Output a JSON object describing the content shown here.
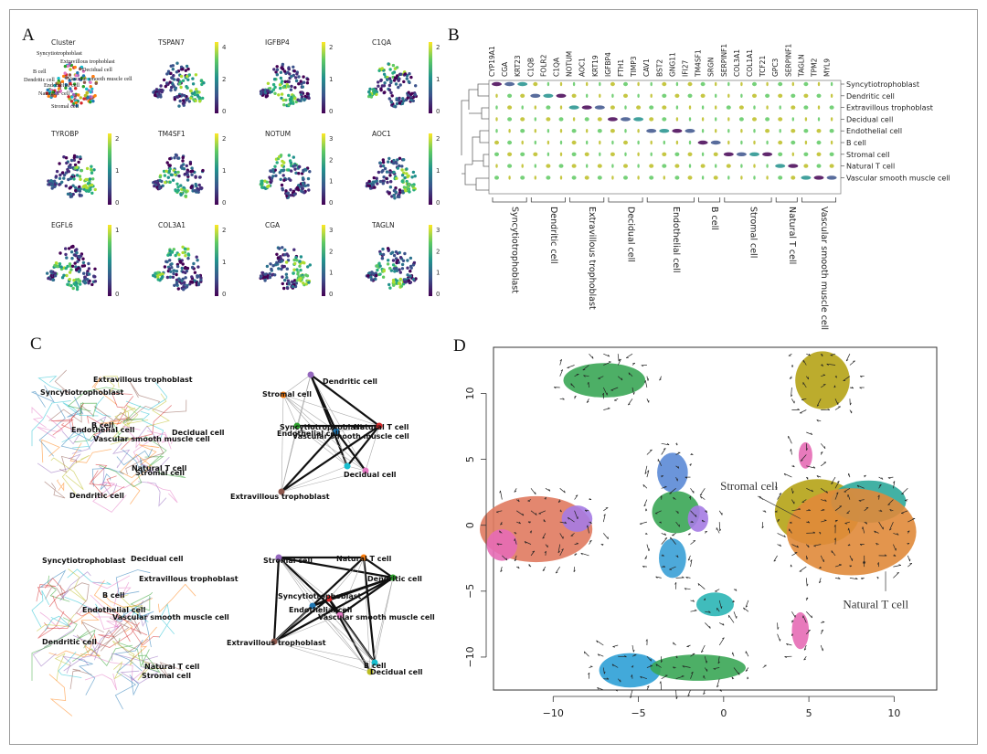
{
  "panels": {
    "a": "A",
    "b": "B",
    "c": "C",
    "d": "D"
  },
  "panel_a": {
    "tiles": [
      {
        "title": "Cluster",
        "scale": []
      },
      {
        "title": "TSPAN7",
        "scale": [
          "4",
          "2",
          "0"
        ]
      },
      {
        "title": "IGFBP4",
        "scale": [
          "2",
          "1",
          "0"
        ]
      },
      {
        "title": "C1QA",
        "scale": [
          "2",
          "1",
          "0"
        ]
      },
      {
        "title": "TYROBP",
        "scale": [
          "2",
          "1",
          "0"
        ]
      },
      {
        "title": "TM4SF1",
        "scale": [
          "2",
          "1",
          "0"
        ]
      },
      {
        "title": "NOTUM",
        "scale": [
          "3",
          "2",
          "1",
          "0"
        ]
      },
      {
        "title": "AOC1",
        "scale": [
          "2",
          "1",
          "0"
        ]
      },
      {
        "title": "EGFL6",
        "scale": [
          "1",
          "0"
        ]
      },
      {
        "title": "COL3A1",
        "scale": [
          "2",
          "1",
          "0"
        ]
      },
      {
        "title": "CGA",
        "scale": [
          "3",
          "2",
          "1",
          "0"
        ]
      },
      {
        "title": "TAGLN",
        "scale": [
          "3",
          "2",
          "1",
          "0"
        ]
      }
    ],
    "cluster_labels": [
      "Syncytiotrophoblast",
      "Extravillous trophoblast",
      "Decidual cell",
      "B cell",
      "Dendritic cell",
      "Vascular smooth muscle cell",
      "Endothelial cell",
      "Natural T cell",
      "Stromal cell"
    ]
  },
  "panel_b": {
    "genes": [
      "CYP19A1",
      "CGA",
      "KRT23",
      "C1QB",
      "FOLR2",
      "C1QA",
      "NOTUM",
      "AOC1",
      "KRT19",
      "IGFBP4",
      "FTH1",
      "TIMP3",
      "CAV1",
      "BST2",
      "GNG11",
      "IFI27",
      "TM4SF1",
      "SRGN",
      "SERPINF1",
      "COL3A1",
      "COL1A1",
      "TCF21",
      "GPC3",
      "SERPINF1",
      "TAGLN",
      "TPM2",
      "MYL9"
    ],
    "rows": [
      "Syncytiotrophoblast",
      "Dendritic cell",
      "Extravillous trophoblast",
      "Decidual cell",
      "Endothelial cell",
      "B cell",
      "Stromal cell",
      "Natural T cell",
      "Vascular smooth muscle cell"
    ],
    "groups": [
      "Syncytiotrophoblast",
      "Dendritic cell",
      "Extravillous trophoblast",
      "Decidual cell",
      "Endothelial cell",
      "B cell",
      "Stromal cell",
      "Natural T cell",
      "Vascular smooth muscle cell"
    ]
  },
  "panel_c": {
    "top_left": [
      "Extravillous trophoblast",
      "Syncytiotrophoblast",
      "B cell",
      "Endothelial cell",
      "Decidual cell",
      "Vascular smooth muscle cell",
      "Natural T cell",
      "Stromal cell",
      "Dendritic cell"
    ],
    "top_right": [
      "Dendritic cell",
      "Stromal cell",
      "Syncytiotrophoblast",
      "Endothelial cell",
      "Natural T cell",
      "Vascular smooth muscle cell",
      "Decidual cell",
      "Extravillous trophoblast"
    ],
    "bottom_left": [
      "Syncytiotrophoblast",
      "Decidual cell",
      "Extravillous trophoblast",
      "B cell",
      "Endothelial cell",
      "Vascular smooth muscle cell",
      "Dendritic cell",
      "Natural T cell",
      "Stromal cell"
    ],
    "bottom_right": [
      "Stromal cell",
      "Natural T cell",
      "Dendritic cell",
      "Syncytiotrophoblast",
      "Endothelial cell",
      "Vascular smooth muscle cell",
      "Extravillous trophoblast",
      "B cell",
      "Decidual cell"
    ]
  },
  "panel_d": {
    "x_ticks": [
      "−10",
      "−5",
      "0",
      "5",
      "10"
    ],
    "y_ticks": [
      "10",
      "5",
      "0",
      "−5",
      "−10"
    ],
    "annotations": [
      "Stromal cell",
      "Natural T cell"
    ]
  }
}
